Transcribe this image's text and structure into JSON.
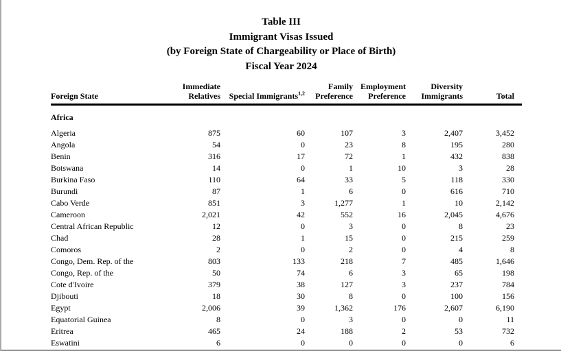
{
  "document": {
    "title_lines": [
      "Table III",
      "Immigrant Visas Issued",
      "(by Foreign State of Chargeability or Place of Birth)",
      "Fiscal Year 2024"
    ]
  },
  "table": {
    "columns": [
      {
        "label": "Foreign State"
      },
      {
        "line1": "Immediate",
        "line2": "Relatives"
      },
      {
        "line1": "",
        "line2": "Special Immigrants",
        "superscript": "1,2"
      },
      {
        "line1": "Family",
        "line2": "Preference"
      },
      {
        "line1": "Employment",
        "line2": "Preference"
      },
      {
        "line1": "Diversity",
        "line2": "Immigrants"
      },
      {
        "line1": "",
        "line2": "Total"
      }
    ],
    "section_header": "Africa",
    "rows": [
      [
        "Algeria",
        "875",
        "60",
        "107",
        "3",
        "2,407",
        "3,452"
      ],
      [
        "Angola",
        "54",
        "0",
        "23",
        "8",
        "195",
        "280"
      ],
      [
        "Benin",
        "316",
        "17",
        "72",
        "1",
        "432",
        "838"
      ],
      [
        "Botswana",
        "14",
        "0",
        "1",
        "10",
        "3",
        "28"
      ],
      [
        "Burkina Faso",
        "110",
        "64",
        "33",
        "5",
        "118",
        "330"
      ],
      [
        "Burundi",
        "87",
        "1",
        "6",
        "0",
        "616",
        "710"
      ],
      [
        "Cabo Verde",
        "851",
        "3",
        "1,277",
        "1",
        "10",
        "2,142"
      ],
      [
        "Cameroon",
        "2,021",
        "42",
        "552",
        "16",
        "2,045",
        "4,676"
      ],
      [
        "Central African Republic",
        "12",
        "0",
        "3",
        "0",
        "8",
        "23"
      ],
      [
        "Chad",
        "28",
        "1",
        "15",
        "0",
        "215",
        "259"
      ],
      [
        "Comoros",
        "2",
        "0",
        "2",
        "0",
        "4",
        "8"
      ],
      [
        "Congo, Dem. Rep. of the",
        "803",
        "133",
        "218",
        "7",
        "485",
        "1,646"
      ],
      [
        "Congo, Rep. of the",
        "50",
        "74",
        "6",
        "3",
        "65",
        "198"
      ],
      [
        "Cote d'Ivoire",
        "379",
        "38",
        "127",
        "3",
        "237",
        "784"
      ],
      [
        "Djibouti",
        "18",
        "30",
        "8",
        "0",
        "100",
        "156"
      ],
      [
        "Egypt",
        "2,006",
        "39",
        "1,362",
        "176",
        "2,607",
        "6,190"
      ],
      [
        "Equatorial Guinea",
        "8",
        "0",
        "3",
        "0",
        "0",
        "11"
      ],
      [
        "Eritrea",
        "465",
        "24",
        "188",
        "2",
        "53",
        "732"
      ],
      [
        "Eswatini",
        "6",
        "0",
        "0",
        "0",
        "0",
        "6"
      ]
    ]
  }
}
